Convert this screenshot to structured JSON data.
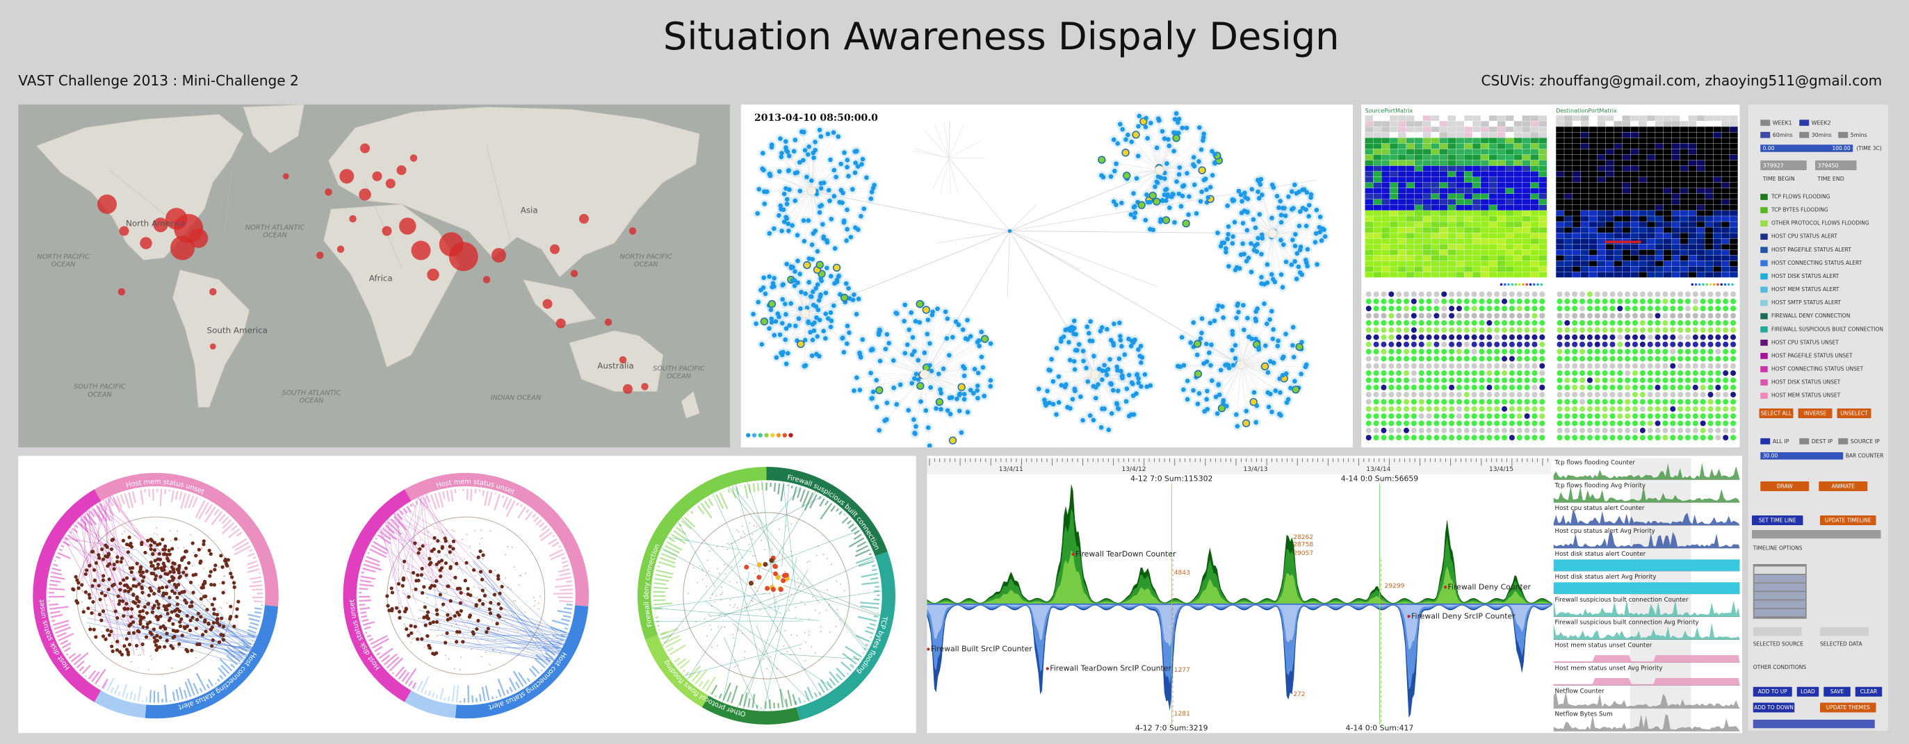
{
  "header": {
    "title": "Situation Awareness Dispaly Design",
    "subtitle": "VAST Challenge 2013 : Mini-Challenge 2",
    "credits": "CSUVis: zhouffang@gmail.com, zhaoying511@gmail.com"
  },
  "map": {
    "labels": [
      [
        "North America"
      ],
      [
        "NORTH ATLANTIC",
        "OCEAN"
      ],
      [
        "NORTH PACIFIC",
        "OCEAN"
      ],
      [
        "Africa"
      ],
      [
        "Asia"
      ],
      [
        "NORTH PACIFIC",
        "OCEAN"
      ],
      [
        "South America"
      ],
      [
        "SOUTH ATLANTIC",
        "OCEAN"
      ],
      [
        "INDIAN OCEAN"
      ],
      [
        "Australia"
      ],
      [
        "SOUTH PACIFIC",
        "OCEAN"
      ],
      [
        "SOUTH PACIFIC",
        "OCEAN"
      ]
    ]
  },
  "network": {
    "timestamp": "2013-04-10 08:50:00.0"
  },
  "matrix": {
    "source_title": "SourcePortMatrix",
    "destination_title": "DestinationPortMatrix"
  },
  "controls": {
    "weeks": [
      "WEEK1",
      "WEEK2"
    ],
    "intervals": [
      "60mins",
      "30mins",
      "5mins"
    ],
    "slider_min": "0.00",
    "slider_max": "100.00",
    "slider_label": "(TIME 3C)",
    "time_begin_value": "379927",
    "time_end_value": "379450",
    "time_begin": "TIME BEGIN",
    "time_end": "TIME END",
    "legend": [
      {
        "label": "TCP FLOWS FLOODING",
        "color": "#1a7a1a"
      },
      {
        "label": "TCP BYTES FLOODING",
        "color": "#55b820"
      },
      {
        "label": "OTHER PROTOCOL FLOWS FLOODING",
        "color": "#99dd44"
      },
      {
        "label": "HOST CPU STATUS ALERT",
        "color": "#1a2f8a"
      },
      {
        "label": "HOST PAGEFILE STATUS ALERT",
        "color": "#2255aa"
      },
      {
        "label": "HOST CONNECTING STATUS ALERT",
        "color": "#3377dd"
      },
      {
        "label": "HOST DISK STATUS ALERT",
        "color": "#22aadd"
      },
      {
        "label": "HOST MEM STATUS ALERT",
        "color": "#55bbdd"
      },
      {
        "label": "HOST SMTP STATUS ALERT",
        "color": "#88ccdd"
      },
      {
        "label": "FIREWALL DENY CONNECTION",
        "color": "#1a6a55"
      },
      {
        "label": "FIREWALL SUSPICIOUS BUILT CONNECTION",
        "color": "#22aa99"
      },
      {
        "label": "HOST CPU STATUS UNSET",
        "color": "#661177"
      },
      {
        "label": "HOST PAGEFILE STATUS UNSET",
        "color": "#aa1199"
      },
      {
        "label": "HOST CONNECTING STATUS UNSET",
        "color": "#cc33aa"
      },
      {
        "label": "HOST DISK STATUS UNSET",
        "color": "#dd55aa"
      },
      {
        "label": "HOST MEM STATUS UNSET",
        "color": "#ee88bb"
      }
    ],
    "select_buttons": [
      "SELECT ALL",
      "INVERSE",
      "UNSELECT"
    ],
    "ip_options": [
      "ALL IP",
      "DEST IP",
      "SOURCE IP"
    ],
    "bar_value": "30.00",
    "bar_label": "BAR COUNTER",
    "draw_buttons": [
      "DRAW",
      "ANIMATE"
    ],
    "timeline_buttons": [
      "SET TIME LINE",
      "UPDATE TIMELINE"
    ],
    "timeline_options": "TIMELINE OPTIONS",
    "selected_source": "SELECTED SOURCE",
    "selected_data": "SELECTED DATA",
    "other_conditions": "OTHER CONDITIONS",
    "up_buttons": [
      "ADD TO UP",
      "LOAD",
      "SAVE",
      "CLEAR"
    ],
    "down_buttons": [
      "ADD TO DOWN",
      "UPDATE THEMES"
    ]
  },
  "radial": {
    "rings": [
      {
        "labels": [
          "Host mem status unset",
          "Host connecting status alert",
          "Host disk status unset"
        ]
      },
      {
        "labels": [
          "Host mem status unset",
          "Host connecting status alert",
          "Host disk status unset"
        ]
      },
      {
        "labels": [
          "Firewall suspicious built connection",
          "TCP bytes flooding",
          "Firewall deny connection",
          "Other protocol flows flooding"
        ]
      }
    ]
  },
  "timeline": {
    "dates": [
      "13/4/11",
      "13/4/12",
      "13/4/13",
      "13/4/14",
      "13/4/15"
    ],
    "annotations": [
      "4-12 7:0 Sum:115302",
      "4-14 0:0 Sum:56659",
      "Firewall TearDown Counter",
      "Firewall Deny Counter",
      "Firewall Built SrcIP Counter",
      "Firewall TearDown SrcIP Counter",
      "Firewall Deny SrcIP Counter",
      "4-12 7:0 Sum:3219",
      "4-14 0:0 Sum:417"
    ],
    "value_labels": [
      "28262",
      "28758",
      "29057",
      "4843",
      "1277",
      "1281",
      "272",
      "29299"
    ],
    "small_charts": [
      "Tcp flows flooding Counter",
      "Tcp flows flooding Avg Priority",
      "Host cpu status alert Counter",
      "Host cpu status alert Avg Priority",
      "Host disk status alert Counter",
      "Host disk status alert Avg Priority",
      "Firewall suspicious built connection Counter",
      "Firewall suspicious built connection Avg Priority",
      "Host mem status unset Counter",
      "Host mem status unset Avg Priority",
      "Netflow Counter",
      "Netflow Bytes Sum"
    ]
  }
}
